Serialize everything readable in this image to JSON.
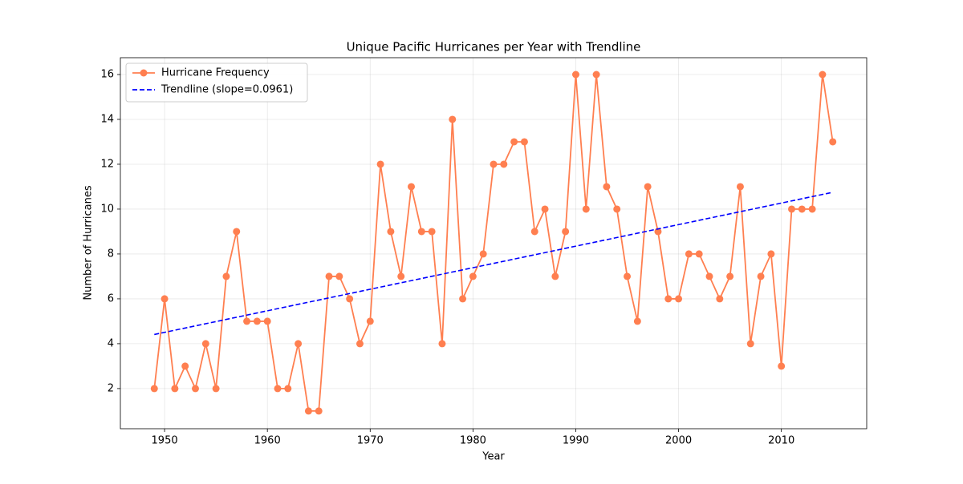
{
  "chart_data": {
    "type": "line",
    "title": "Unique Pacific Hurricanes per Year with Trendline",
    "xlabel": "Year",
    "ylabel": "Number of Hurricanes",
    "x": [
      1949,
      1950,
      1951,
      1952,
      1953,
      1954,
      1955,
      1956,
      1957,
      1958,
      1959,
      1960,
      1961,
      1962,
      1963,
      1964,
      1965,
      1966,
      1967,
      1968,
      1969,
      1970,
      1971,
      1972,
      1973,
      1974,
      1975,
      1976,
      1977,
      1978,
      1979,
      1980,
      1981,
      1982,
      1983,
      1984,
      1985,
      1986,
      1987,
      1988,
      1989,
      1990,
      1991,
      1992,
      1993,
      1994,
      1995,
      1996,
      1997,
      1998,
      1999,
      2000,
      2001,
      2002,
      2003,
      2004,
      2005,
      2006,
      2007,
      2008,
      2009,
      2010,
      2011,
      2012,
      2013,
      2014,
      2015
    ],
    "series": [
      {
        "name": "Hurricane Frequency",
        "color": "#ff7f50",
        "marker": true,
        "dashed": false,
        "values": [
          2,
          6,
          2,
          3,
          2,
          4,
          2,
          7,
          9,
          5,
          5,
          5,
          2,
          2,
          4,
          1,
          1,
          7,
          7,
          6,
          4,
          5,
          12,
          9,
          7,
          11,
          9,
          9,
          4,
          14,
          6,
          7,
          8,
          12,
          12,
          13,
          13,
          9,
          10,
          7,
          9,
          16,
          10,
          16,
          11,
          10,
          7,
          5,
          11,
          9,
          6,
          6,
          8,
          8,
          7,
          6,
          7,
          11,
          4,
          7,
          8,
          3,
          10,
          10,
          10,
          16,
          13
        ]
      },
      {
        "name": "Trendline (slope=0.0961)",
        "color": "#0000ff",
        "marker": false,
        "dashed": true,
        "x": [
          1949,
          2015
        ],
        "values": [
          4.41,
          10.75
        ]
      }
    ],
    "xlim": [
      1945.7,
      2018.3
    ],
    "xticks": [
      1950,
      1960,
      1970,
      1980,
      1990,
      2000,
      2010
    ],
    "ylim": [
      0.21,
      16.75
    ],
    "yticks": [
      2,
      4,
      6,
      8,
      10,
      12,
      14,
      16
    ],
    "grid": true,
    "legend": "upper-left"
  }
}
